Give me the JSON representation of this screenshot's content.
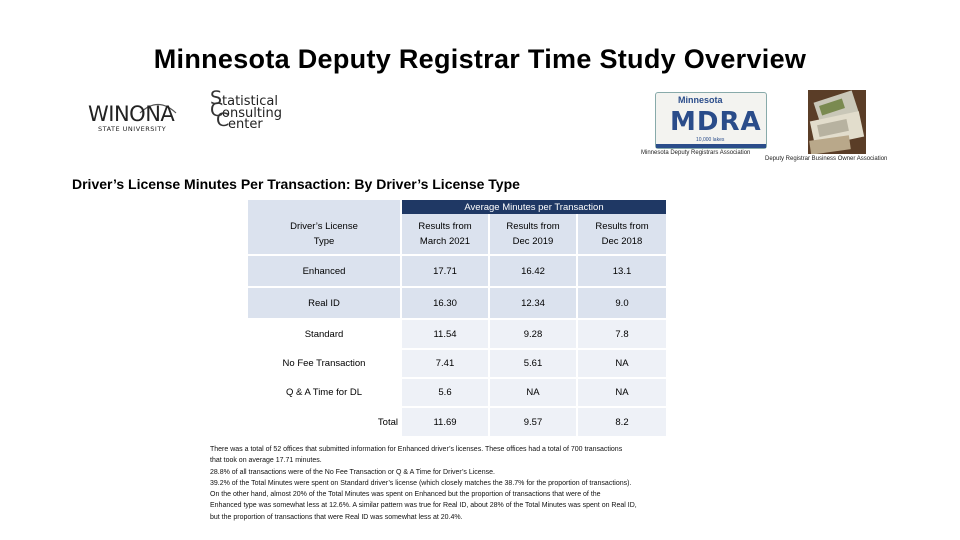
{
  "title": "Minnesota Deputy Registrar Time Study Overview",
  "logos": {
    "winona_name": "WINONA",
    "winona_sub": "STATE UNIVERSITY",
    "scc_lines": [
      "tatistical",
      "onsulting",
      "enter"
    ],
    "scc_letters": [
      "S",
      "C",
      "C"
    ],
    "mdra_top": "Minnesota",
    "mdra_main": "MDRA",
    "mdra_lakes": "10,000 lakes",
    "mdra_caption": "Minnesota Deputy Registrars Association",
    "dbo_caption": "Deputy Registrar Business Owner Association"
  },
  "subtitle": "Driver’s License Minutes Per Transaction: By Driver’s License Type",
  "table": {
    "group_header": "Average Minutes per Transaction",
    "row_header": "Driver’s License Type",
    "columns": [
      "Results from March 2021",
      "Results from Dec 2019",
      "Results from Dec 2018"
    ],
    "rows": [
      {
        "label": "Enhanced",
        "values": [
          "17.71",
          "16.42",
          "13.1"
        ]
      },
      {
        "label": "Real ID",
        "values": [
          "16.30",
          "12.34",
          "9.0"
        ]
      },
      {
        "label": "Standard",
        "values": [
          "11.54",
          "9.28",
          "7.8"
        ]
      },
      {
        "label": "No Fee Transaction",
        "values": [
          "7.41",
          "5.61",
          "NA"
        ]
      },
      {
        "label": "Q & A Time for DL",
        "values": [
          "5.6",
          "NA",
          "NA"
        ]
      },
      {
        "label": "Total",
        "values": [
          "11.69",
          "9.57",
          "8.2"
        ]
      }
    ]
  },
  "description": [
    "There was a total of 52 offices that submitted information for Enhanced driver’s licenses. These offices had a total of 700 transactions",
    "that took on average 17.71 minutes.",
    "28.8% of all transactions were of the No Fee Transaction or Q & A Time for Driver’s License.",
    "39.2% of the Total Minutes were spent on Standard driver’s license (which closely matches the 38.7% for the proportion of transactions).",
    "On the other hand, almost 20% of the Total Minutes was spent on Enhanced but the proportion of transactions that were of the",
    "Enhanced type was somewhat less at 12.6%. A similar pattern was true for Real ID, about 28% of the Total Minutes was spent on Real ID,",
    "but the proportion of transactions that were Real ID was somewhat less at 20.4%."
  ]
}
